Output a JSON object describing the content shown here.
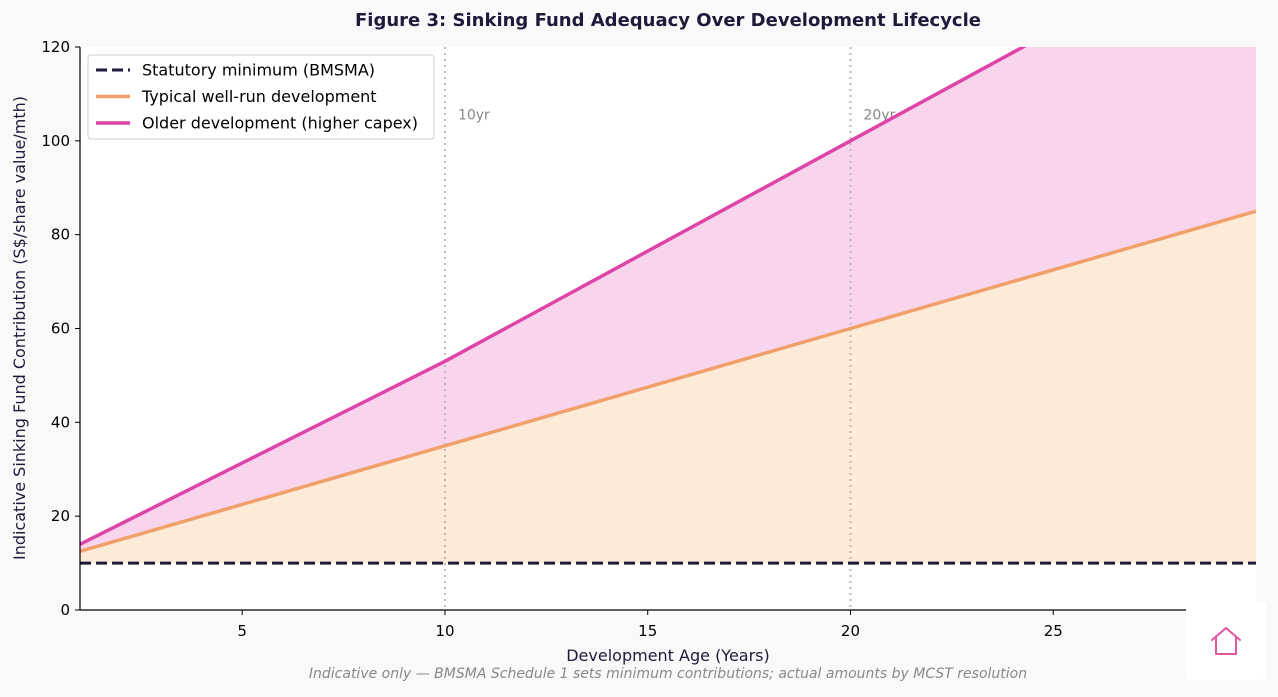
{
  "chart_data": {
    "type": "area",
    "title": "Figure 3: Sinking Fund Adequacy Over Development Lifecycle",
    "xlabel": "Development Age (Years)",
    "ylabel": "Indicative Sinking Fund Contribution (S$/share value/mth)",
    "footnote": "Indicative only — BMSMA Schedule 1 sets minimum contributions; actual amounts by MCST resolution",
    "xlim": [
      1,
      30
    ],
    "ylim": [
      0,
      120
    ],
    "xticks": [
      5,
      10,
      15,
      20,
      25
    ],
    "yticks": [
      0,
      20,
      40,
      60,
      80,
      100,
      120
    ],
    "grid": false,
    "legend_position": "top-left",
    "series": [
      {
        "name": "Statutory minimum (BMSMA)",
        "style": "dashed",
        "color": "#1e1b3a",
        "x": [
          1,
          30
        ],
        "y": [
          10,
          10
        ]
      },
      {
        "name": "Typical well-run development",
        "style": "solid",
        "color": "#f0a06a",
        "fill": "#fdebd8",
        "x": [
          1,
          10,
          20,
          30
        ],
        "y": [
          12.5,
          35,
          60,
          85
        ]
      },
      {
        "name": "Older development (higher capex)",
        "style": "solid",
        "color": "#de44a8",
        "fill": "#f8d5ec",
        "x": [
          1,
          10,
          20,
          30
        ],
        "y": [
          14,
          53,
          100,
          147
        ]
      }
    ],
    "reference_lines": [
      {
        "x": 10,
        "label": "10yr"
      },
      {
        "x": 20,
        "label": "20yr"
      }
    ]
  },
  "home_button": {
    "icon": "home-icon",
    "color": "#e0559f"
  }
}
